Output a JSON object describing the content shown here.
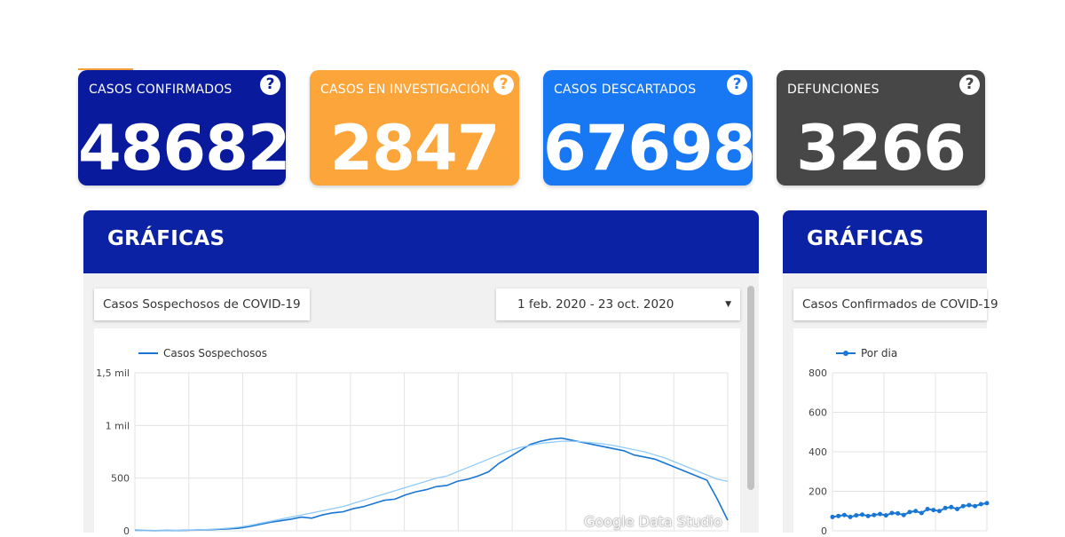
{
  "colors": {
    "confirmed": "#0a1a9c",
    "investigation": "#fba53a",
    "discarded": "#1877f2",
    "deaths": "#474747",
    "header": "#0a22a3",
    "line": "#1976d2"
  },
  "cards": [
    {
      "title": "CASOS CONFIRMADOS",
      "value": "48682",
      "icon": "question-icon"
    },
    {
      "title": "CASOS EN INVESTIGACIÓN",
      "value": "2847",
      "icon": "question-icon"
    },
    {
      "title": "CASOS DESCARTADOS",
      "value": "67698",
      "icon": "question-icon"
    },
    {
      "title": "DEFUNCIONES",
      "value": "3266",
      "icon": "question-icon"
    }
  ],
  "help_glyph": "?",
  "left_panel": {
    "header": "GRÁFICAS",
    "chart_title": "Casos Sospechosos de COVID-19",
    "date_range": "1 feb. 2020 - 23 oct. 2020",
    "dropdown_icon": "caret-down-icon",
    "watermark": "Google Data Studio"
  },
  "right_panel": {
    "header": "GRÁFICAS",
    "chart_title": "Casos Confirmados de COVID-19"
  },
  "chart_data": [
    {
      "type": "line",
      "series": [
        {
          "name": "Casos Sospechosos",
          "values": [
            5,
            3,
            2,
            4,
            3,
            5,
            8,
            10,
            14,
            18,
            25,
            40,
            60,
            80,
            95,
            110,
            130,
            120,
            150,
            170,
            180,
            210,
            230,
            260,
            290,
            300,
            340,
            370,
            390,
            420,
            430,
            470,
            490,
            520,
            560,
            640,
            700,
            760,
            820,
            850,
            870,
            880,
            860,
            840,
            820,
            800,
            780,
            760,
            720,
            700,
            680,
            640,
            600,
            560,
            520,
            480,
            300,
            100
          ]
        },
        {
          "name": "",
          "values": [
            1,
            1,
            2,
            2,
            3,
            5,
            8,
            12,
            18,
            25,
            35,
            50,
            70,
            90,
            110,
            130,
            150,
            170,
            190,
            210,
            230,
            260,
            290,
            320,
            350,
            380,
            410,
            440,
            470,
            500,
            520,
            560,
            600,
            640,
            680,
            720,
            760,
            790,
            810,
            830,
            840,
            850,
            850,
            845,
            835,
            825,
            810,
            790,
            770,
            750,
            720,
            690,
            650,
            610,
            570,
            530,
            490,
            470
          ]
        }
      ],
      "ylim": [
        0,
        1500
      ],
      "yticks": [
        "0",
        "500",
        "1 mil",
        "1,5 mil"
      ],
      "legend": "top-left"
    },
    {
      "type": "line",
      "series": [
        {
          "name": "Por dia",
          "values": [
            70,
            75,
            80,
            70,
            78,
            82,
            75,
            80,
            85,
            78,
            90,
            88,
            80,
            95,
            100,
            90,
            110,
            105,
            100,
            115,
            120,
            110,
            125,
            130,
            125,
            135,
            140
          ]
        }
      ],
      "ylim": [
        0,
        800
      ],
      "yticks": [
        "0",
        "200",
        "400",
        "600",
        "800"
      ],
      "legend": "top-left"
    }
  ]
}
